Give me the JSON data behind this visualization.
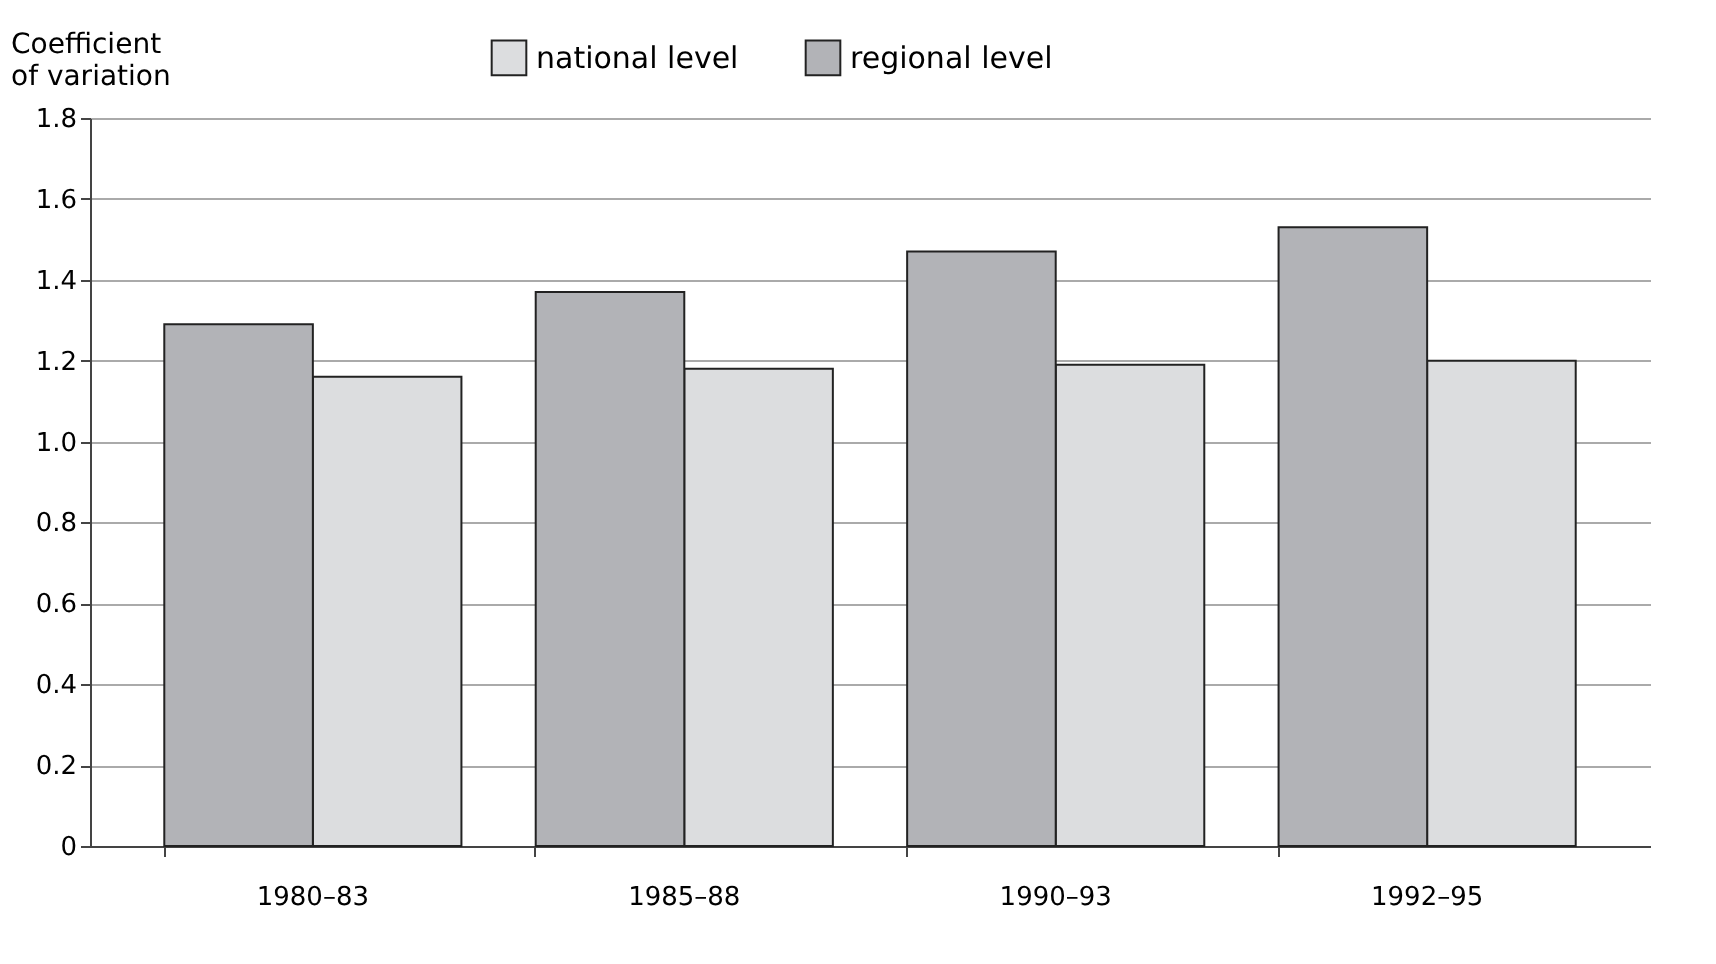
{
  "chart_data": {
    "type": "bar",
    "ylabel": "Coefficient of variation",
    "categories": [
      "1980–83",
      "1985–88",
      "1990–93",
      "1992–95"
    ],
    "series": [
      {
        "name": "national level",
        "color": "#dcdddf",
        "values": [
          1.16,
          1.18,
          1.19,
          1.2
        ]
      },
      {
        "name": "regional level",
        "color": "#b2b3b7",
        "values": [
          1.29,
          1.37,
          1.47,
          1.53
        ]
      }
    ],
    "ylim": [
      0,
      1.8
    ],
    "yticks": [
      0,
      0.2,
      0.4,
      0.6,
      0.8,
      {
        "value": 1,
        "label": "1.0"
      },
      1.2,
      1.4,
      1.6,
      1.8
    ],
    "grid": "y",
    "legend": "top"
  }
}
